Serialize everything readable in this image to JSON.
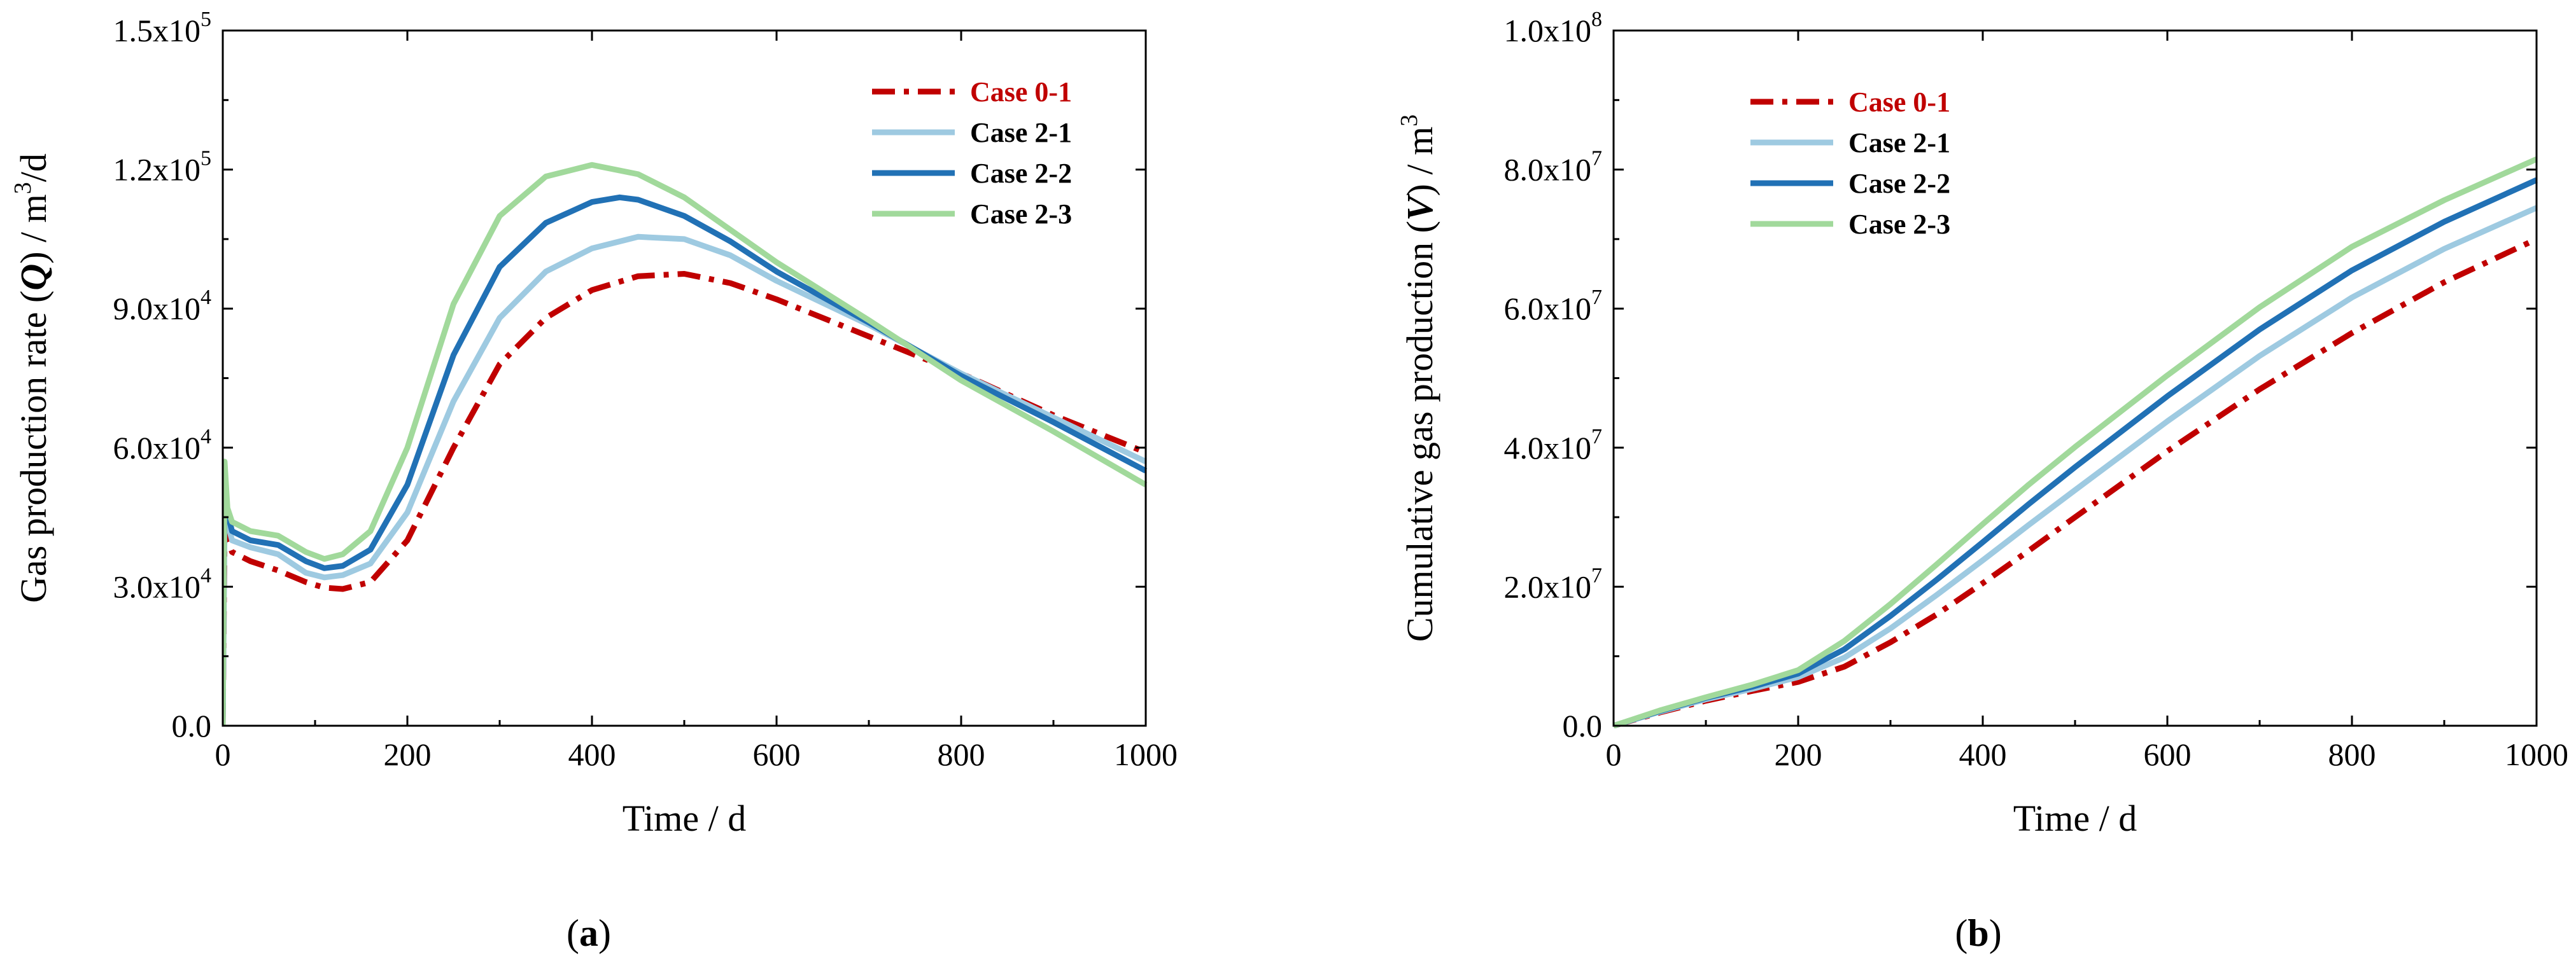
{
  "chart_data": [
    {
      "type": "line",
      "panel": "a",
      "panel_label": "a",
      "ylabel": "Gas production rate (Q) / m3/d",
      "ylabel_parts": {
        "pre": "Gas production rate (",
        "var": "Q",
        "post": ") / m",
        "sup": "3",
        "tail": "/d"
      },
      "xlabel": "Time / d",
      "xlim": [
        0,
        1000
      ],
      "ylim": [
        0,
        150000
      ],
      "xticks": [
        0,
        200,
        400,
        600,
        800,
        1000
      ],
      "xtick_labels": [
        "0",
        "200",
        "400",
        "600",
        "800",
        "1000"
      ],
      "yticks": [
        0,
        30000,
        60000,
        90000,
        120000,
        150000
      ],
      "ytick_labels": [
        {
          "mant": "0.0",
          "exp": ""
        },
        {
          "mant": "3.0x10",
          "exp": "4"
        },
        {
          "mant": "6.0x10",
          "exp": "4"
        },
        {
          "mant": "9.0x10",
          "exp": "4"
        },
        {
          "mant": "1.2x10",
          "exp": "5"
        },
        {
          "mant": "1.5x10",
          "exp": "5"
        }
      ],
      "legend_position": "top-right",
      "series": [
        {
          "name": "Case 0-1",
          "color": "#c00000",
          "dash": "dashdot",
          "name_color": "#c00000",
          "x": [
            0,
            2,
            5,
            10,
            30,
            60,
            90,
            110,
            130,
            160,
            200,
            250,
            300,
            350,
            400,
            450,
            500,
            550,
            600,
            700,
            800,
            900,
            1000
          ],
          "y": [
            0,
            42000,
            40000,
            37500,
            35500,
            33500,
            31000,
            29800,
            29500,
            31000,
            40000,
            60000,
            78000,
            88000,
            94000,
            97000,
            97500,
            95500,
            92000,
            84000,
            76000,
            67000,
            59000
          ]
        },
        {
          "name": "Case 2-1",
          "color": "#9ecae1",
          "dash": "solid",
          "name_color": "#000000",
          "x": [
            0,
            2,
            5,
            10,
            30,
            60,
            90,
            110,
            130,
            160,
            200,
            250,
            300,
            350,
            400,
            450,
            500,
            550,
            600,
            700,
            800,
            900,
            1000
          ],
          "y": [
            0,
            48000,
            44000,
            40000,
            38500,
            37000,
            33000,
            32000,
            32500,
            35000,
            46000,
            70000,
            88000,
            98000,
            103000,
            105500,
            105000,
            101500,
            96000,
            86500,
            76000,
            66500,
            57000
          ]
        },
        {
          "name": "Case 2-2",
          "color": "#2171b5",
          "dash": "solid",
          "name_color": "#000000",
          "x": [
            0,
            2,
            5,
            10,
            30,
            60,
            90,
            110,
            130,
            160,
            200,
            250,
            300,
            350,
            400,
            430,
            450,
            500,
            550,
            600,
            700,
            800,
            900,
            1000
          ],
          "y": [
            0,
            52000,
            46000,
            42000,
            40000,
            39000,
            35500,
            34000,
            34500,
            38000,
            52000,
            80000,
            99000,
            108500,
            113000,
            114000,
            113500,
            110000,
            104500,
            98000,
            87000,
            75500,
            65500,
            55000
          ]
        },
        {
          "name": "Case 2-3",
          "color": "#a1d99b",
          "dash": "solid",
          "name_color": "#000000",
          "x": [
            0,
            2,
            5,
            10,
            30,
            60,
            90,
            110,
            130,
            160,
            200,
            250,
            300,
            350,
            400,
            450,
            500,
            550,
            600,
            700,
            800,
            900,
            1000
          ],
          "y": [
            0,
            57000,
            47000,
            44000,
            42000,
            41000,
            37500,
            36000,
            37000,
            42000,
            60000,
            91000,
            110000,
            118500,
            121000,
            119000,
            114000,
            107000,
            100000,
            87500,
            74500,
            63500,
            52000
          ]
        }
      ]
    },
    {
      "type": "line",
      "panel": "b",
      "panel_label": "b",
      "ylabel": "Cumulative gas production (V) / m3",
      "ylabel_parts": {
        "pre": "Cumulative gas production (",
        "var": "V",
        "post": ") / m",
        "sup": "3",
        "tail": ""
      },
      "xlabel": "Time / d",
      "xlim": [
        0,
        1000
      ],
      "ylim": [
        0,
        100000000
      ],
      "xticks": [
        0,
        200,
        400,
        600,
        800,
        1000
      ],
      "xtick_labels": [
        "0",
        "200",
        "400",
        "600",
        "800",
        "1000"
      ],
      "yticks": [
        0,
        20000000,
        40000000,
        60000000,
        80000000,
        100000000
      ],
      "ytick_labels": [
        {
          "mant": "0.0",
          "exp": ""
        },
        {
          "mant": "2.0x10",
          "exp": "7"
        },
        {
          "mant": "4.0x10",
          "exp": "7"
        },
        {
          "mant": "6.0x10",
          "exp": "7"
        },
        {
          "mant": "8.0x10",
          "exp": "7"
        },
        {
          "mant": "1.0x10",
          "exp": "8"
        }
      ],
      "legend_position": "top-left",
      "series": [
        {
          "name": "Case 0-1",
          "color": "#c00000",
          "dash": "dashdot",
          "name_color": "#c00000",
          "x": [
            0,
            50,
            100,
            150,
            200,
            250,
            300,
            350,
            400,
            450,
            500,
            600,
            700,
            800,
            900,
            1000
          ],
          "y": [
            0,
            1900000,
            3600000,
            5000000,
            6300000,
            8500000,
            12000000,
            16000000,
            20500000,
            25200000,
            30000000,
            39500000,
            48400000,
            56500000,
            63800000,
            70000000
          ]
        },
        {
          "name": "Case 2-1",
          "color": "#9ecae1",
          "dash": "solid",
          "name_color": "#000000",
          "x": [
            0,
            50,
            100,
            150,
            200,
            250,
            300,
            350,
            400,
            450,
            500,
            600,
            700,
            800,
            900,
            1000
          ],
          "y": [
            0,
            2000000,
            3800000,
            5300000,
            7000000,
            9800000,
            14000000,
            18800000,
            23800000,
            28900000,
            33900000,
            43800000,
            53200000,
            61600000,
            68600000,
            74500000
          ]
        },
        {
          "name": "Case 2-2",
          "color": "#2171b5",
          "dash": "solid",
          "name_color": "#000000",
          "x": [
            0,
            50,
            100,
            150,
            200,
            250,
            300,
            350,
            400,
            450,
            500,
            600,
            700,
            800,
            900,
            1000
          ],
          "y": [
            0,
            2100000,
            4000000,
            5600000,
            7500000,
            11000000,
            15800000,
            21000000,
            26400000,
            31900000,
            37200000,
            47400000,
            57000000,
            65500000,
            72500000,
            78500000
          ]
        },
        {
          "name": "Case 2-3",
          "color": "#a1d99b",
          "dash": "solid",
          "name_color": "#000000",
          "x": [
            0,
            50,
            100,
            150,
            200,
            250,
            300,
            350,
            400,
            450,
            500,
            600,
            700,
            800,
            900,
            1000
          ],
          "y": [
            0,
            2200000,
            4100000,
            5900000,
            8000000,
            12200000,
            17500000,
            23200000,
            29000000,
            34700000,
            40100000,
            50400000,
            60200000,
            68900000,
            75600000,
            81500000
          ]
        }
      ]
    }
  ]
}
